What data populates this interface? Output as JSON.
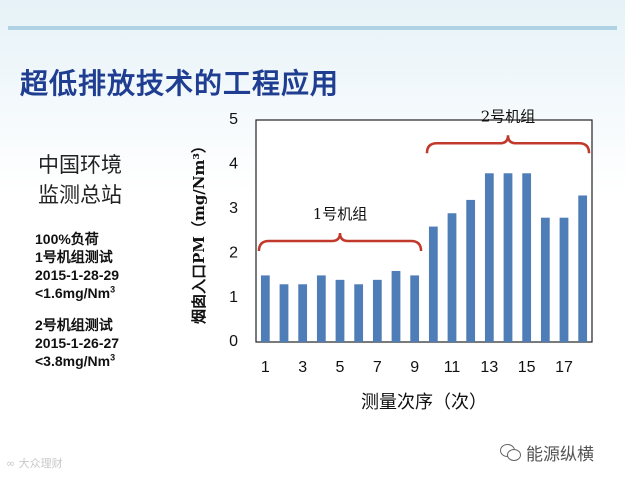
{
  "slide": {
    "title": "超低排放技术的工程应用",
    "org_lines": [
      "中国环境",
      "监测总站"
    ],
    "notes": {
      "load": "100%负荷",
      "unit1_test": "1号机组测试",
      "unit1_date": "2015-1-28-29",
      "unit1_limit": "<1.6mg/Nm",
      "unit1_limit_sup": "3",
      "unit2_test": "2号机组测试",
      "unit2_date": "2015-1-26-27",
      "unit2_limit": "<3.8mg/Nm",
      "unit2_limit_sup": "3"
    },
    "watermark_left": "∞ 大众理财",
    "watermark_right": "能源纵横",
    "watermark_icon": "wechat-icon"
  },
  "chart_data": {
    "type": "bar",
    "title": "",
    "xlabel": "测量次序（次）",
    "ylabel": "烟囱入口PM（mg/Nm³）",
    "x": [
      1,
      2,
      3,
      4,
      5,
      6,
      7,
      8,
      9,
      10,
      11,
      12,
      13,
      14,
      15,
      16,
      17,
      18
    ],
    "values": [
      1.5,
      1.3,
      1.3,
      1.5,
      1.4,
      1.3,
      1.4,
      1.6,
      1.5,
      2.6,
      2.9,
      3.2,
      3.8,
      3.8,
      3.8,
      2.8,
      2.8,
      3.3
    ],
    "x_tick_labels": [
      "1",
      "",
      "3",
      "",
      "5",
      "",
      "7",
      "",
      "9",
      "",
      "11",
      "",
      "13",
      "",
      "15",
      "",
      "17",
      ""
    ],
    "y_ticks": [
      "0",
      "1",
      "2",
      "3",
      "4",
      "5"
    ],
    "ylim": [
      0,
      5
    ],
    "grid": false,
    "bar_color": "#4f7db8",
    "annotations": [
      {
        "text": "1号机组",
        "from_index": 0,
        "to_index": 8,
        "bracket_color": "#c0392b"
      },
      {
        "text": "2号机组",
        "from_index": 9,
        "to_index": 17,
        "bracket_color": "#c0392b"
      }
    ]
  }
}
